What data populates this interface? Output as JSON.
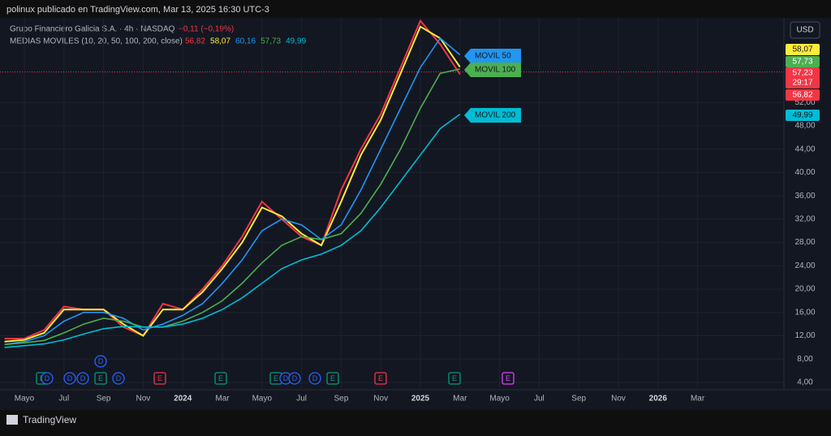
{
  "header": {
    "attribution": "polinux publicado en TradingView.com, Mar 13, 2025 16:30 UTC-3",
    "symbol": "Grupo Financiero Galicia S.A. · 4h · NASDAQ",
    "change": "−0,11 (−0,19%)",
    "indicator": "MEDIAS MOVILES (10, 20, 50, 100, 200, close)",
    "currency": "USD"
  },
  "footer": {
    "brand": "TradingView"
  },
  "chart_data": {
    "type": "line",
    "categories": [
      null,
      "Mayo",
      null,
      "Jul",
      null,
      "Sep",
      null,
      "Nov",
      null,
      "2024",
      null,
      "Mar",
      null,
      "Mayo",
      null,
      "Jul",
      null,
      "Sep",
      null,
      "Nov",
      null,
      "2025",
      null,
      "Mar",
      null,
      "Mayo",
      null,
      "Jul",
      null,
      "Sep",
      null,
      "Nov",
      null,
      "2026",
      null,
      "Mar",
      null,
      null,
      null,
      null
    ],
    "series": [
      {
        "color": "#f23645",
        "values": [
          11.5,
          11.5,
          13,
          17,
          16.5,
          16.5,
          13.5,
          12,
          17.5,
          16.5,
          20,
          24,
          29,
          35,
          32,
          29,
          27.5,
          37,
          44,
          50,
          58,
          66,
          62,
          56.82,
          null,
          null,
          null,
          null,
          null,
          null,
          null,
          null,
          null,
          null,
          null,
          null,
          null,
          null,
          null,
          null
        ]
      },
      {
        "color": "#ffeb3b",
        "values": [
          11,
          11.3,
          12.5,
          16.5,
          16.5,
          16.5,
          14,
          12,
          16.5,
          16.5,
          19.5,
          23.5,
          28,
          34,
          32.5,
          29.5,
          27.5,
          35,
          43,
          49,
          57,
          65,
          63,
          58.07,
          null,
          null,
          null,
          null,
          null,
          null,
          null,
          null,
          null,
          null,
          null,
          null,
          null,
          null,
          null,
          null
        ]
      },
      {
        "name": "MOVIL 50",
        "color": "#2196f3",
        "values": [
          10.5,
          11,
          12,
          14.5,
          16,
          16,
          15,
          13,
          14,
          15.5,
          17.5,
          21,
          25,
          30,
          32,
          31,
          28.5,
          31,
          37,
          44,
          51,
          58,
          63,
          60.16,
          null,
          null,
          null,
          null,
          null,
          null,
          null,
          null,
          null,
          null,
          null,
          null,
          null,
          null,
          null,
          null
        ]
      },
      {
        "name": "MOVIL 100",
        "color": "#4caf50",
        "values": [
          10.5,
          10.8,
          11.2,
          12.5,
          14,
          15,
          14.5,
          13.5,
          13.5,
          14.5,
          16,
          18,
          21,
          24.5,
          27.5,
          29,
          28.5,
          29.5,
          33,
          38,
          44,
          51,
          57,
          57.73,
          null,
          null,
          null,
          null,
          null,
          null,
          null,
          null,
          null,
          null,
          null,
          null,
          null,
          null,
          null,
          null
        ]
      },
      {
        "name": "MOVIL 200",
        "color": "#00bcd4",
        "values": [
          10,
          10.3,
          10.6,
          11.3,
          12.3,
          13.2,
          13.6,
          13.5,
          13.5,
          14,
          15,
          16.5,
          18.5,
          21,
          23.5,
          25,
          26,
          27.5,
          30,
          34,
          38.5,
          43,
          47.5,
          49.99,
          null,
          null,
          null,
          null,
          null,
          null,
          null,
          null,
          null,
          null,
          null,
          null,
          null,
          null,
          null,
          null
        ]
      }
    ],
    "legend_values": [
      {
        "value": 56.82,
        "label": "56,82"
      },
      {
        "value": 58.07,
        "label": "58,07"
      },
      {
        "value": 60.16,
        "label": "60,16"
      },
      {
        "value": 57.73,
        "label": "57,73"
      },
      {
        "value": 49.99,
        "label": "49,99"
      }
    ],
    "last_price": {
      "value": 57.23,
      "label": "57,23"
    },
    "countdown": "29:17",
    "ylim": [
      2.75,
      66.5
    ],
    "yticks": [
      {
        "value": 4,
        "label": "4,00"
      },
      {
        "value": 8,
        "label": "8,00"
      },
      {
        "value": 12,
        "label": "12,00"
      },
      {
        "value": 16,
        "label": "16,00"
      },
      {
        "value": 20,
        "label": "20,00"
      },
      {
        "value": 24,
        "label": "24,00"
      },
      {
        "value": 28,
        "label": "28,00"
      },
      {
        "value": 32,
        "label": "32,00"
      },
      {
        "value": 36,
        "label": "36,00"
      },
      {
        "value": 40,
        "label": "40,00"
      },
      {
        "value": 44,
        "label": "44,00"
      },
      {
        "value": 48,
        "label": "48,00"
      },
      {
        "value": 52,
        "label": "52,00"
      }
    ],
    "events": [
      "E",
      "D",
      "D",
      "D",
      "E",
      "D",
      "D",
      "E",
      "E",
      "E",
      "D",
      "D",
      "D",
      "E",
      "E",
      "E",
      "E"
    ],
    "grid": true
  }
}
